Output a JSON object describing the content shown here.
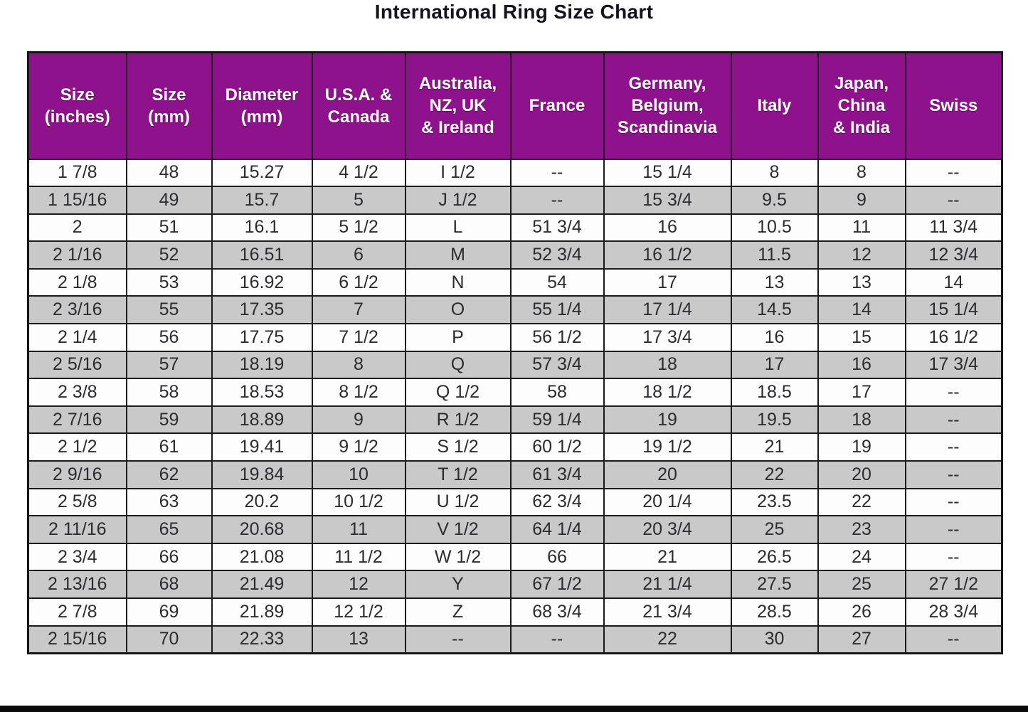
{
  "page": {
    "title": "International Ring Size Chart"
  },
  "colors": {
    "header_bg": "#8e128c",
    "header_text": "#ffffff",
    "row_white": "#fdfdfd",
    "row_gray": "#c9c9c9",
    "body_text": "#2c2c30",
    "border": "#1b1b1b",
    "title_text": "#14141e",
    "bottom_bar": "#0b0b0b"
  },
  "chart_data": {
    "type": "table",
    "title": "International Ring Size Chart",
    "columns": [
      {
        "key": "size-inches",
        "label": "Size\n(inches)"
      },
      {
        "key": "size-mm",
        "label": "Size\n(mm)"
      },
      {
        "key": "diameter-mm",
        "label": "Diameter\n(mm)"
      },
      {
        "key": "usa-canada",
        "label": "U.S.A. &\nCanada"
      },
      {
        "key": "australia-nz-uk-ireland",
        "label": "Australia,\nNZ, UK\n& Ireland"
      },
      {
        "key": "france",
        "label": "France"
      },
      {
        "key": "germany-belgium-scandinavia",
        "label": "Germany,\nBelgium,\nScandinavia"
      },
      {
        "key": "italy",
        "label": "Italy"
      },
      {
        "key": "japan-china-india",
        "label": "Japan,\nChina\n& India"
      },
      {
        "key": "swiss",
        "label": "Swiss"
      }
    ],
    "rows": [
      [
        "1 7/8",
        "48",
        "15.27",
        "4 1/2",
        "I 1/2",
        "--",
        "15 1/4",
        "8",
        "8",
        "--"
      ],
      [
        "1 15/16",
        "49",
        "15.7",
        "5",
        "J 1/2",
        "--",
        "15 3/4",
        "9.5",
        "9",
        "--"
      ],
      [
        "2",
        "51",
        "16.1",
        "5 1/2",
        "L",
        "51 3/4",
        "16",
        "10.5",
        "11",
        "11 3/4"
      ],
      [
        "2 1/16",
        "52",
        "16.51",
        "6",
        "M",
        "52 3/4",
        "16 1/2",
        "11.5",
        "12",
        "12 3/4"
      ],
      [
        "2 1/8",
        "53",
        "16.92",
        "6 1/2",
        "N",
        "54",
        "17",
        "13",
        "13",
        "14"
      ],
      [
        "2 3/16",
        "55",
        "17.35",
        "7",
        "O",
        "55 1/4",
        "17 1/4",
        "14.5",
        "14",
        "15 1/4"
      ],
      [
        "2 1/4",
        "56",
        "17.75",
        "7 1/2",
        "P",
        "56 1/2",
        "17 3/4",
        "16",
        "15",
        "16 1/2"
      ],
      [
        "2 5/16",
        "57",
        "18.19",
        "8",
        "Q",
        "57 3/4",
        "18",
        "17",
        "16",
        "17 3/4"
      ],
      [
        "2 3/8",
        "58",
        "18.53",
        "8 1/2",
        "Q 1/2",
        "58",
        "18 1/2",
        "18.5",
        "17",
        "--"
      ],
      [
        "2 7/16",
        "59",
        "18.89",
        "9",
        "R 1/2",
        "59 1/4",
        "19",
        "19.5",
        "18",
        "--"
      ],
      [
        "2 1/2",
        "61",
        "19.41",
        "9 1/2",
        "S 1/2",
        "60 1/2",
        "19 1/2",
        "21",
        "19",
        "--"
      ],
      [
        "2 9/16",
        "62",
        "19.84",
        "10",
        "T 1/2",
        "61 3/4",
        "20",
        "22",
        "20",
        "--"
      ],
      [
        "2 5/8",
        "63",
        "20.2",
        "10 1/2",
        "U 1/2",
        "62 3/4",
        "20 1/4",
        "23.5",
        "22",
        "--"
      ],
      [
        "2 11/16",
        "65",
        "20.68",
        "11",
        "V 1/2",
        "64 1/4",
        "20 3/4",
        "25",
        "23",
        "--"
      ],
      [
        "2 3/4",
        "66",
        "21.08",
        "11 1/2",
        "W 1/2",
        "66",
        "21",
        "26.5",
        "24",
        "--"
      ],
      [
        "2 13/16",
        "68",
        "21.49",
        "12",
        "Y",
        "67 1/2",
        "21 1/4",
        "27.5",
        "25",
        "27 1/2"
      ],
      [
        "2 7/8",
        "69",
        "21.89",
        "12 1/2",
        "Z",
        "68 3/4",
        "21 3/4",
        "28.5",
        "26",
        "28 3/4"
      ],
      [
        "2 15/16",
        "70",
        "22.33",
        "13",
        "--",
        "--",
        "22",
        "30",
        "27",
        "--"
      ]
    ]
  }
}
